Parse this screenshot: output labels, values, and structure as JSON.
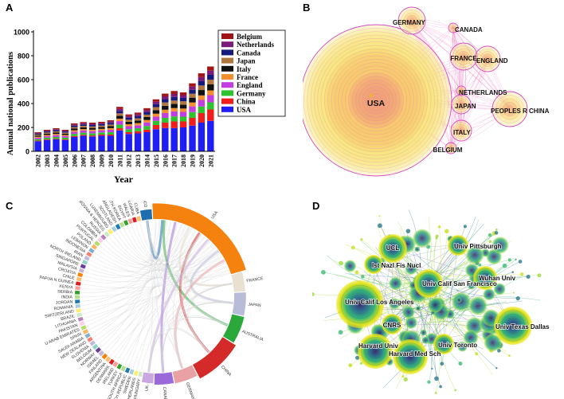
{
  "panels": {
    "a": {
      "letter": "A"
    },
    "b": {
      "letter": "B"
    },
    "c": {
      "letter": "C"
    },
    "d": {
      "letter": "D"
    }
  },
  "chart_data": [
    {
      "type": "bar",
      "stacked": true,
      "title": "",
      "xlabel": "Year",
      "ylabel": "Annual national publications",
      "ylim": [
        0,
        1000
      ],
      "yticks": [
        0,
        200,
        400,
        600,
        800,
        1000
      ],
      "legend_position": "top-right",
      "categories": [
        "2002",
        "2003",
        "2004",
        "2005",
        "2006",
        "2007",
        "2008",
        "2009",
        "2010",
        "2011",
        "2012",
        "2013",
        "2014",
        "2015",
        "2016",
        "2017",
        "2018",
        "2019",
        "2020",
        "2021"
      ],
      "series": [
        {
          "name": "USA",
          "color": "#1f1ff5",
          "values": [
            85,
            95,
            100,
            95,
            120,
            130,
            125,
            130,
            130,
            175,
            145,
            150,
            160,
            185,
            195,
            195,
            200,
            215,
            240,
            255
          ]
        },
        {
          "name": "China",
          "color": "#f01d1d",
          "values": [
            5,
            5,
            5,
            5,
            8,
            8,
            8,
            10,
            10,
            18,
            15,
            18,
            22,
            35,
            45,
            55,
            50,
            65,
            80,
            95
          ]
        },
        {
          "name": "Germany",
          "color": "#2fc22f",
          "values": [
            12,
            14,
            15,
            14,
            18,
            18,
            18,
            18,
            20,
            30,
            25,
            25,
            30,
            35,
            40,
            42,
            40,
            48,
            55,
            60
          ]
        },
        {
          "name": "England",
          "color": "#c23ee0",
          "values": [
            12,
            14,
            15,
            14,
            18,
            18,
            18,
            18,
            20,
            30,
            25,
            25,
            30,
            35,
            40,
            42,
            40,
            48,
            55,
            60
          ]
        },
        {
          "name": "France",
          "color": "#f59030",
          "values": [
            8,
            9,
            10,
            9,
            12,
            12,
            12,
            12,
            14,
            20,
            17,
            18,
            20,
            25,
            28,
            28,
            28,
            33,
            38,
            40
          ]
        },
        {
          "name": "Italy",
          "color": "#111111",
          "values": [
            10,
            11,
            12,
            11,
            14,
            15,
            15,
            15,
            16,
            25,
            20,
            22,
            25,
            30,
            33,
            35,
            33,
            40,
            45,
            50
          ]
        },
        {
          "name": "Japan",
          "color": "#b07840",
          "values": [
            8,
            9,
            10,
            9,
            12,
            12,
            12,
            12,
            14,
            20,
            17,
            18,
            20,
            25,
            28,
            28,
            28,
            33,
            38,
            40
          ]
        },
        {
          "name": "Canada",
          "color": "#161a7a",
          "values": [
            8,
            9,
            10,
            9,
            12,
            12,
            12,
            12,
            14,
            20,
            17,
            18,
            20,
            25,
            28,
            30,
            28,
            33,
            38,
            40
          ]
        },
        {
          "name": "Netherlands",
          "color": "#7a1a7a",
          "values": [
            6,
            7,
            8,
            7,
            10,
            10,
            10,
            10,
            11,
            17,
            14,
            15,
            17,
            20,
            23,
            25,
            23,
            27,
            32,
            35
          ]
        },
        {
          "name": "Belgium",
          "color": "#a01515",
          "values": [
            6,
            7,
            8,
            7,
            10,
            10,
            10,
            10,
            11,
            17,
            14,
            15,
            17,
            20,
            23,
            25,
            23,
            27,
            32,
            35
          ]
        }
      ]
    },
    {
      "type": "network",
      "title": "",
      "nodes": [
        {
          "label": "USA",
          "weight": 1000
        },
        {
          "label": "GERMANY",
          "weight": 95
        },
        {
          "label": "CANADA",
          "weight": 45
        },
        {
          "label": "FRANCE",
          "weight": 85
        },
        {
          "label": "ENGLAND",
          "weight": 90
        },
        {
          "label": "NETHERLANDS",
          "weight": 40
        },
        {
          "label": "JAPAN",
          "weight": 55
        },
        {
          "label": "PEOPLES R CHINA",
          "weight": 110
        },
        {
          "label": "ITALY",
          "weight": 65
        },
        {
          "label": "BELGIUM",
          "weight": 35
        }
      ]
    },
    {
      "type": "chord",
      "title": "",
      "countries": [
        "USA",
        "FRANCE",
        "JAPAN",
        "AUSTRALIA",
        "CHINA",
        "GERMANY",
        "CANADA",
        "UK",
        "HUNGARY",
        "NETHERLANDS",
        "SWEDEN",
        "CZECH REPUBLIC",
        "SOUTH AFRICA",
        "TURKEY",
        "IRELAND",
        "DENMARK",
        "ARGENTINA",
        "FINLAND",
        "ISRAEL",
        "NORWAY",
        "BELGIUM",
        "SLOVENIA",
        "NEW ZEALAND",
        "SAUDI ARABIA",
        "SPAIN",
        "U ARAB EMIRATES",
        "PAKISTAN",
        "LITHUANIA",
        "BRAZIL",
        "SWITZERLAND",
        "ROMANIA",
        "JORDAN",
        "INDIA",
        "SERBIA",
        "KENYA",
        "PAPUA N GUINEA",
        "CHILE",
        "CROATIA",
        "MALAYSIA",
        "SINGAPORE",
        "NORTH IRELAND",
        "IRAN",
        "INDONESIA",
        "LEBANON",
        "POLAND",
        "PORTUGAL",
        "COLOMBIA",
        "RUSSIA",
        "BOSNIA & HERCEG",
        "LUXEMBOURG",
        "SCOTLAND",
        "BANGLADESH",
        "NORTH KOREA",
        "EGYPT",
        "WALES",
        "BULGARIA",
        "CUBA",
        "MEXICO"
      ]
    },
    {
      "type": "network",
      "title": "",
      "nodes": [
        {
          "label": "UCL"
        },
        {
          "label": "Univ Pittsburgh"
        },
        {
          "label": "Ist Nazl Fis Nucl"
        },
        {
          "label": "Wuhan Univ"
        },
        {
          "label": "Univ Calif San Francisco"
        },
        {
          "label": "Univ Calif Los Angeles"
        },
        {
          "label": "CNRS"
        },
        {
          "label": "Univ Texas Dallas"
        },
        {
          "label": "Harvard Univ"
        },
        {
          "label": "Univ Toronto"
        },
        {
          "label": "Harvard Med Sch"
        }
      ]
    }
  ]
}
